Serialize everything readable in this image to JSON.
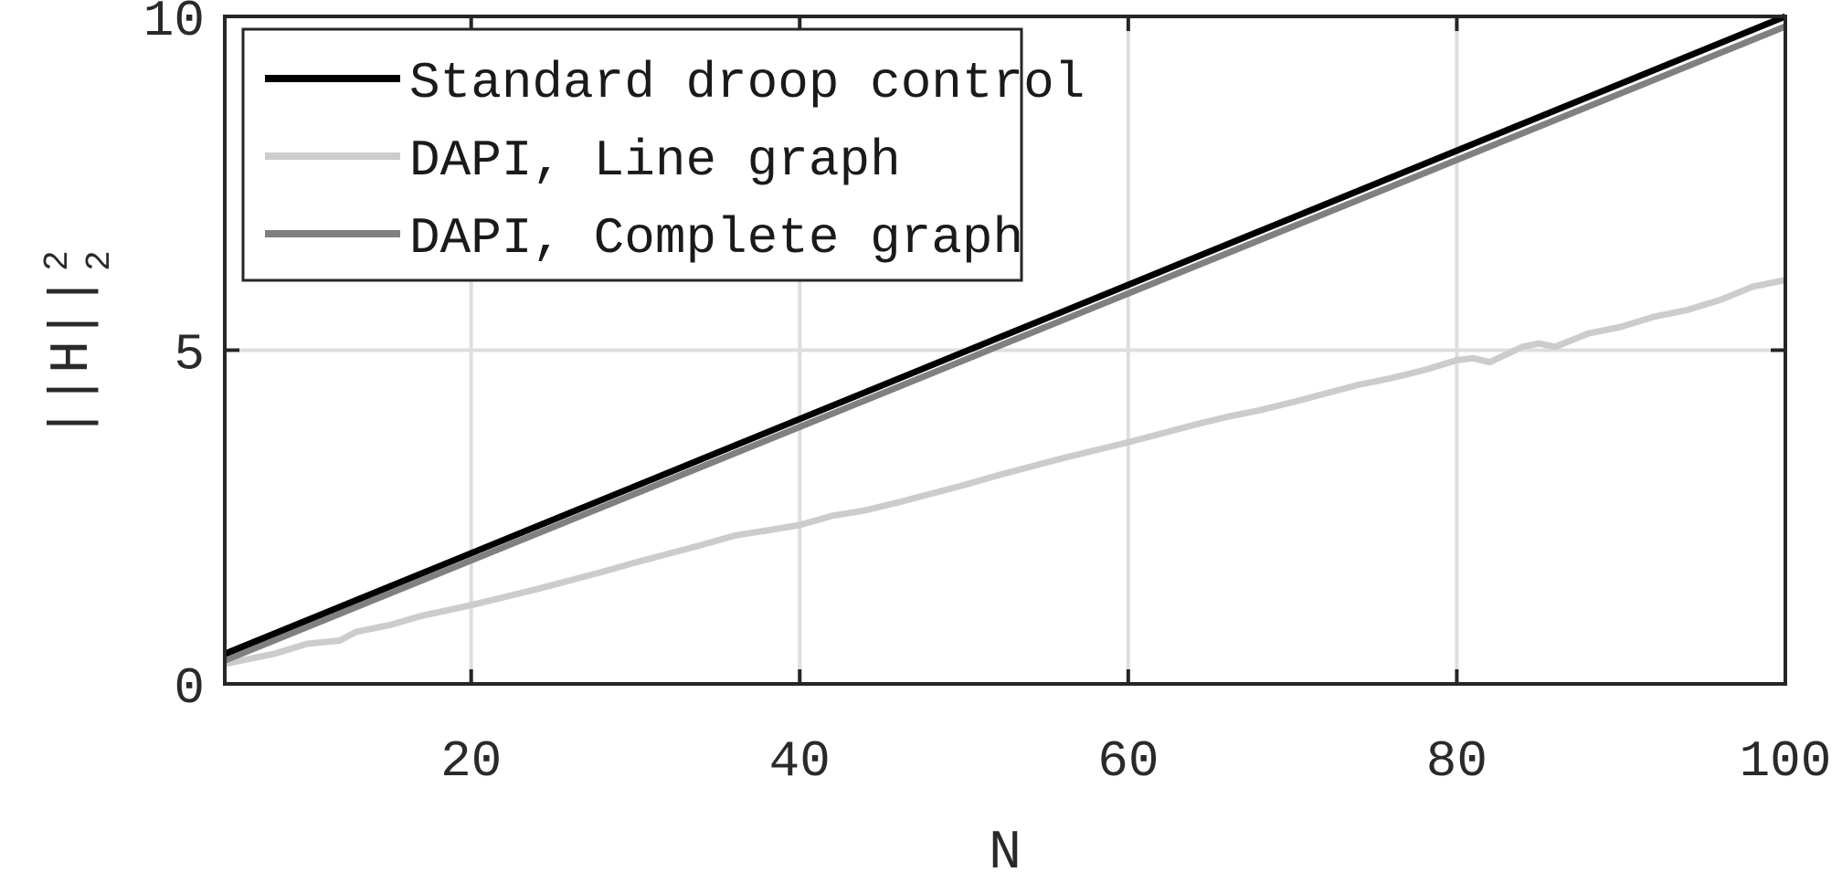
{
  "chart_data": {
    "type": "line",
    "title": "",
    "xlabel": "N",
    "ylabel": "||H||",
    "ylabel_superscript": "2",
    "ylabel_subscript": "2",
    "xlim": [
      5,
      100
    ],
    "ylim": [
      0,
      10
    ],
    "xticks": [
      20,
      40,
      60,
      80,
      100
    ],
    "yticks": [
      0,
      5,
      10
    ],
    "xtick_labels": [
      "20",
      "40",
      "60",
      "80",
      "100"
    ],
    "ytick_labels": [
      "0",
      "5",
      "10"
    ],
    "grid": true,
    "legend_position": "top-left",
    "series": [
      {
        "name": "Standard droop control",
        "color": "#000000",
        "x": [
          5,
          100
        ],
        "y": [
          0.45,
          10.0
        ]
      },
      {
        "name": "DAPI, Line graph",
        "color": "#cccccc",
        "x": [
          5,
          8,
          10,
          12,
          13,
          15,
          17,
          20,
          22,
          24,
          26,
          28,
          30,
          32,
          34,
          36,
          38,
          40,
          42,
          44,
          46,
          48,
          50,
          52,
          54,
          56,
          58,
          60,
          62,
          64,
          66,
          68,
          70,
          72,
          74,
          76,
          78,
          80,
          81,
          82,
          84,
          85,
          86,
          88,
          90,
          92,
          94,
          96,
          98,
          100
        ],
        "y": [
          0.3,
          0.45,
          0.6,
          0.65,
          0.78,
          0.88,
          1.02,
          1.18,
          1.3,
          1.42,
          1.55,
          1.68,
          1.82,
          1.95,
          2.08,
          2.22,
          2.3,
          2.38,
          2.52,
          2.6,
          2.72,
          2.85,
          2.98,
          3.12,
          3.25,
          3.38,
          3.5,
          3.62,
          3.75,
          3.88,
          4.0,
          4.1,
          4.22,
          4.35,
          4.48,
          4.58,
          4.7,
          4.85,
          4.88,
          4.82,
          5.05,
          5.1,
          5.05,
          5.25,
          5.35,
          5.5,
          5.6,
          5.75,
          5.95,
          6.05
        ]
      },
      {
        "name": "DAPI, Complete graph",
        "color": "#808080",
        "x": [
          5,
          100
        ],
        "y": [
          0.35,
          9.85
        ]
      }
    ]
  }
}
